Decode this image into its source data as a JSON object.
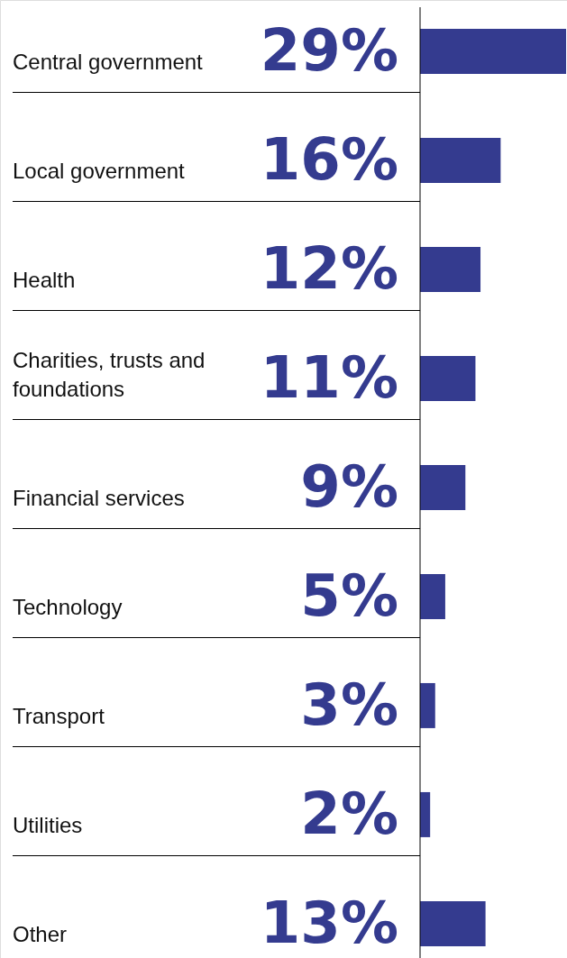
{
  "chart_data": {
    "type": "bar",
    "orientation": "horizontal",
    "color": "#343b8f",
    "categories": [
      "Central government",
      "Local government",
      "Health",
      "Charities, trusts and foundations",
      "Financial services",
      "Technology",
      "Transport",
      "Utilities",
      "Other"
    ],
    "values": [
      29,
      16,
      12,
      11,
      9,
      5,
      3,
      2,
      13
    ],
    "value_labels": [
      "29%",
      "16%",
      "12%",
      "11%",
      "9%",
      "5%",
      "3%",
      "2%",
      "13%"
    ]
  }
}
